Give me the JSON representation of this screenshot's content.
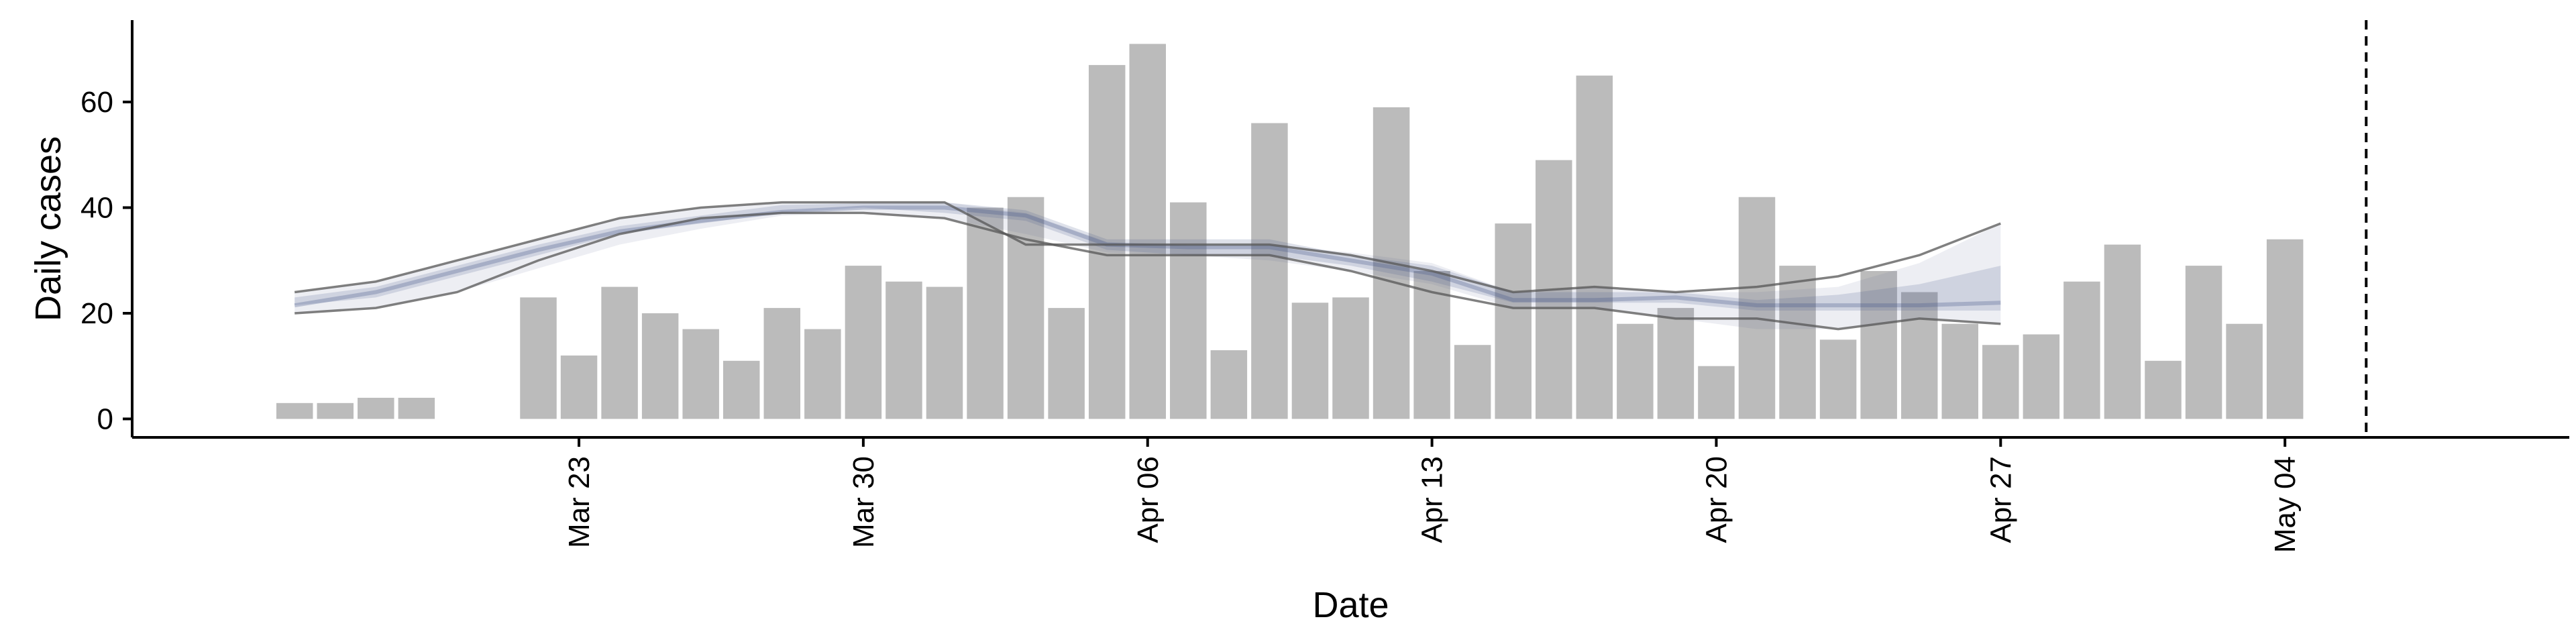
{
  "chart_data": {
    "type": "bar",
    "xlabel": "Date",
    "ylabel": "Daily cases",
    "ylim": [
      -3.5,
      75.5
    ],
    "yticks": [
      0,
      20,
      40,
      60
    ],
    "x_start": "2020-03-16",
    "xlim_dates": [
      "2020-03-12",
      "2020-05-11"
    ],
    "xticks": [
      {
        "date": "2020-03-23",
        "label": "Mar 23"
      },
      {
        "date": "2020-03-30",
        "label": "Mar 30"
      },
      {
        "date": "2020-04-06",
        "label": "Apr 06"
      },
      {
        "date": "2020-04-13",
        "label": "Apr 13"
      },
      {
        "date": "2020-04-20",
        "label": "Apr 20"
      },
      {
        "date": "2020-04-27",
        "label": "Apr 27"
      },
      {
        "date": "2020-05-04",
        "label": "May 04"
      }
    ],
    "bars": {
      "color": "#bbbbbb",
      "dates": [
        "2020-03-16",
        "2020-03-17",
        "2020-03-18",
        "2020-03-19",
        "2020-03-20",
        "2020-03-21",
        "2020-03-22",
        "2020-03-23",
        "2020-03-24",
        "2020-03-25",
        "2020-03-26",
        "2020-03-27",
        "2020-03-28",
        "2020-03-29",
        "2020-03-30",
        "2020-03-31",
        "2020-04-01",
        "2020-04-02",
        "2020-04-03",
        "2020-04-04",
        "2020-04-05",
        "2020-04-06",
        "2020-04-07",
        "2020-04-08",
        "2020-04-09",
        "2020-04-10",
        "2020-04-11",
        "2020-04-12",
        "2020-04-13",
        "2020-04-14",
        "2020-04-15",
        "2020-04-16",
        "2020-04-17",
        "2020-04-18",
        "2020-04-19",
        "2020-04-20",
        "2020-04-21",
        "2020-04-22",
        "2020-04-23",
        "2020-04-24",
        "2020-04-25",
        "2020-04-26",
        "2020-04-27",
        "2020-04-28",
        "2020-04-29",
        "2020-04-30",
        "2020-05-01",
        "2020-05-02",
        "2020-05-03",
        "2020-05-04",
        "2020-05-05",
        "2020-05-06",
        "2020-05-07"
      ],
      "values": [
        3,
        3,
        4,
        4,
        0,
        0,
        23,
        12,
        25,
        20,
        17,
        11,
        21,
        17,
        29,
        26,
        25,
        40,
        42,
        21,
        67,
        71,
        41,
        13,
        56,
        22,
        23,
        59,
        28,
        14,
        37,
        49,
        65,
        18,
        21,
        10,
        42,
        29,
        15,
        28,
        24,
        18,
        14,
        16,
        26,
        33,
        11,
        29,
        18,
        34,
        0,
        0,
        0
      ]
    },
    "estimate_band": {
      "color": "#4a5a8c",
      "dates": [
        "2020-03-16",
        "2020-03-18",
        "2020-03-20",
        "2020-03-22",
        "2020-03-24",
        "2020-03-26",
        "2020-03-28",
        "2020-03-30",
        "2020-04-01",
        "2020-04-03",
        "2020-04-05",
        "2020-04-07",
        "2020-04-09",
        "2020-04-11",
        "2020-04-13",
        "2020-04-15",
        "2020-04-17",
        "2020-04-19",
        "2020-04-21",
        "2020-04-23",
        "2020-04-25",
        "2020-04-27"
      ],
      "median": [
        21.5,
        24,
        28,
        32,
        35.5,
        37.5,
        39.2,
        40,
        40,
        38.5,
        33,
        32.5,
        32.5,
        30,
        27.5,
        22.5,
        22.5,
        23,
        21.5,
        21.5,
        21.5,
        22
      ],
      "inner_low": [
        21.5,
        23,
        27,
        31,
        35,
        37,
        39,
        40,
        39,
        37.5,
        32,
        31,
        31,
        29,
        26,
        22,
        22,
        22,
        20.5,
        20.5,
        20.5,
        20.5
      ],
      "inner_high": [
        23,
        25,
        29,
        33,
        36.5,
        38.5,
        40.5,
        40.8,
        41,
        39.5,
        34,
        34,
        34,
        31,
        29,
        24,
        24,
        24,
        22.5,
        23.5,
        25.5,
        29
      ],
      "outer_low": [
        20,
        21,
        24,
        28.5,
        33,
        36,
        38.5,
        39,
        38,
        35,
        31.5,
        31,
        30,
        28,
        25.5,
        21,
        21,
        19,
        17,
        17,
        19,
        18
      ],
      "outer_high": [
        24,
        26,
        30,
        34,
        38,
        40,
        41,
        41,
        41,
        39,
        33.5,
        33,
        33,
        31.5,
        29.5,
        24,
        25,
        24,
        24,
        25,
        29.5,
        37
      ],
      "line_low": [
        20,
        21,
        24,
        30,
        35,
        38,
        39,
        39,
        38,
        34,
        31,
        31,
        31,
        28,
        24,
        21,
        21,
        19,
        19,
        17,
        19,
        18
      ],
      "line_high": [
        24,
        26,
        30,
        34,
        38,
        40,
        41,
        41,
        41,
        33,
        33,
        33,
        33,
        31,
        28,
        24,
        25,
        24,
        25,
        27,
        31,
        37
      ]
    },
    "reference_line": {
      "date": "2020-05-06",
      "style": "dashed"
    }
  }
}
